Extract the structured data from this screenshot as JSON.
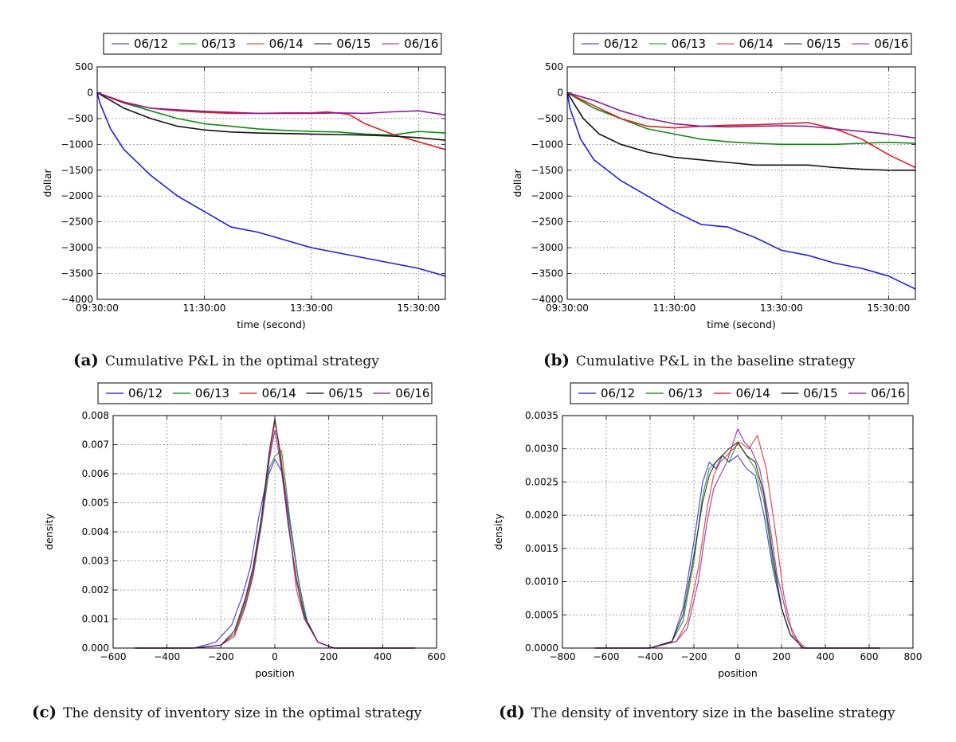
{
  "figure": {
    "captions": {
      "a": {
        "letter": "(a)",
        "text": "Cumulative P&L in the optimal strategy"
      },
      "b": {
        "letter": "(b)",
        "text": "Cumulative P&L in the baseline strategy"
      },
      "c": {
        "letter": "(c)",
        "text": "The density of inventory size in the optimal strategy"
      },
      "d": {
        "letter": "(d)",
        "text": "The density of inventory size in the baseline strategy"
      }
    },
    "colors": {
      "06/12": "#1f1fd6",
      "06/13": "#0f8a0f",
      "06/14": "#e01e1e",
      "06/15": "#111111",
      "06/16": "#8a1a9a"
    }
  },
  "chart_data": [
    {
      "id": "a",
      "type": "line",
      "title": "",
      "xlabel": "time (second)",
      "ylabel": "dollar",
      "x_unit": "hours since 09:30",
      "xlim": [
        0,
        6.5
      ],
      "ylim": [
        -4000,
        500
      ],
      "xticks": [
        0,
        2,
        4,
        6
      ],
      "xticklabels": [
        "09:30:00",
        "11:30:00",
        "13:30:00",
        "15:30:00"
      ],
      "yticks": [
        500,
        0,
        -500,
        -1000,
        -1500,
        -2000,
        -2500,
        -3000,
        -3500,
        -4000
      ],
      "grid": true,
      "legend": "top-center-outside",
      "series": [
        {
          "name": "06/12",
          "x": [
            0,
            0.05,
            0.25,
            0.5,
            1,
            1.5,
            2,
            2.5,
            3,
            3.5,
            4,
            4.5,
            5,
            5.5,
            6,
            6.5
          ],
          "values": [
            0,
            -200,
            -700,
            -1100,
            -1600,
            -2000,
            -2300,
            -2600,
            -2700,
            -2850,
            -3000,
            -3100,
            -3200,
            -3300,
            -3400,
            -3550
          ]
        },
        {
          "name": "06/13",
          "x": [
            0,
            0.5,
            1,
            1.5,
            2,
            2.5,
            3,
            3.5,
            4,
            4.5,
            5,
            5.5,
            6,
            6.5
          ],
          "values": [
            0,
            -200,
            -350,
            -500,
            -600,
            -650,
            -700,
            -730,
            -750,
            -760,
            -800,
            -820,
            -750,
            -780
          ]
        },
        {
          "name": "06/14",
          "x": [
            0,
            0.5,
            1,
            1.5,
            2,
            2.5,
            3,
            3.5,
            4,
            4.3,
            4.7,
            5,
            5.5,
            6,
            6.5
          ],
          "values": [
            0,
            -180,
            -300,
            -350,
            -380,
            -400,
            -400,
            -390,
            -390,
            -370,
            -420,
            -600,
            -800,
            -950,
            -1100
          ]
        },
        {
          "name": "06/15",
          "x": [
            0,
            0.5,
            1,
            1.5,
            2,
            2.5,
            3,
            3.5,
            4,
            4.5,
            5,
            5.5,
            6,
            6.5
          ],
          "values": [
            0,
            -300,
            -500,
            -650,
            -720,
            -760,
            -780,
            -790,
            -800,
            -810,
            -820,
            -840,
            -870,
            -920
          ]
        },
        {
          "name": "06/16",
          "x": [
            0,
            0.5,
            1,
            1.5,
            2,
            2.5,
            3,
            3.5,
            4,
            4.5,
            5,
            5.5,
            6,
            6.5
          ],
          "values": [
            0,
            -200,
            -300,
            -330,
            -360,
            -380,
            -400,
            -400,
            -400,
            -390,
            -400,
            -370,
            -350,
            -430
          ]
        }
      ]
    },
    {
      "id": "b",
      "type": "line",
      "title": "",
      "xlabel": "time (second)",
      "ylabel": "dollar",
      "x_unit": "hours since 09:30",
      "xlim": [
        0,
        6.5
      ],
      "ylim": [
        -4000,
        500
      ],
      "xticks": [
        0,
        2,
        4,
        6
      ],
      "xticklabels": [
        "09:30:00",
        "11:30:00",
        "13:30:00",
        "15:30:00"
      ],
      "yticks": [
        500,
        0,
        -500,
        -1000,
        -1500,
        -2000,
        -2500,
        -3000,
        -3500,
        -4000
      ],
      "grid": true,
      "legend": "top-center-outside",
      "series": [
        {
          "name": "06/12",
          "x": [
            0,
            0.05,
            0.25,
            0.5,
            1,
            1.5,
            2,
            2.5,
            3,
            3.5,
            4,
            4.5,
            5,
            5.5,
            6,
            6.5
          ],
          "values": [
            0,
            -300,
            -900,
            -1300,
            -1700,
            -2000,
            -2300,
            -2550,
            -2600,
            -2800,
            -3050,
            -3150,
            -3300,
            -3400,
            -3550,
            -3800
          ]
        },
        {
          "name": "06/13",
          "x": [
            0,
            0.5,
            1,
            1.5,
            2,
            2.5,
            3,
            3.5,
            4,
            4.5,
            5,
            5.5,
            6,
            6.5
          ],
          "values": [
            0,
            -300,
            -500,
            -700,
            -800,
            -900,
            -950,
            -980,
            -1000,
            -1000,
            -1000,
            -980,
            -960,
            -980
          ]
        },
        {
          "name": "06/14",
          "x": [
            0,
            0.5,
            1,
            1.5,
            2,
            2.5,
            3,
            3.5,
            4,
            4.5,
            5,
            5.5,
            6,
            6.5
          ],
          "values": [
            0,
            -250,
            -500,
            -650,
            -680,
            -650,
            -630,
            -620,
            -600,
            -580,
            -700,
            -900,
            -1200,
            -1450
          ]
        },
        {
          "name": "06/15",
          "x": [
            0,
            0.3,
            0.6,
            1,
            1.5,
            2,
            2.5,
            3,
            3.5,
            4,
            4.5,
            5,
            5.5,
            6,
            6.5
          ],
          "values": [
            0,
            -500,
            -800,
            -1000,
            -1150,
            -1250,
            -1300,
            -1350,
            -1400,
            -1400,
            -1400,
            -1450,
            -1480,
            -1500,
            -1500
          ]
        },
        {
          "name": "06/16",
          "x": [
            0,
            0.5,
            1,
            1.5,
            2,
            2.5,
            3,
            3.5,
            4,
            4.5,
            5,
            5.5,
            6,
            6.5
          ],
          "values": [
            0,
            -150,
            -350,
            -500,
            -600,
            -650,
            -660,
            -650,
            -640,
            -650,
            -700,
            -750,
            -800,
            -880
          ]
        }
      ]
    },
    {
      "id": "c",
      "type": "line",
      "title": "",
      "xlabel": "position",
      "ylabel": "density",
      "xlim": [
        -600,
        600
      ],
      "ylim": [
        0,
        0.008
      ],
      "xticks": [
        -600,
        -400,
        -200,
        0,
        200,
        400,
        600
      ],
      "xticklabels": [
        "−600",
        "−400",
        "−200",
        "0",
        "200",
        "400",
        "600"
      ],
      "yticks": [
        0,
        0.001,
        0.002,
        0.003,
        0.004,
        0.005,
        0.006,
        0.007,
        0.008
      ],
      "yticklabels": [
        "0.000",
        "0.001",
        "0.002",
        "0.003",
        "0.004",
        "0.005",
        "0.006",
        "0.007",
        "0.008"
      ],
      "grid": true,
      "legend": "top-center-outside",
      "series": [
        {
          "name": "06/12",
          "x": [
            -520,
            -300,
            -220,
            -160,
            -120,
            -90,
            -60,
            -30,
            0,
            30,
            60,
            90,
            120,
            160,
            220,
            300,
            520
          ],
          "values": [
            0,
            0,
            0.0002,
            0.0008,
            0.0018,
            0.0028,
            0.0045,
            0.0058,
            0.0065,
            0.006,
            0.004,
            0.0022,
            0.0009,
            0.0002,
            0,
            0,
            0
          ]
        },
        {
          "name": "06/13",
          "x": [
            -520,
            -300,
            -200,
            -150,
            -110,
            -80,
            -50,
            -20,
            0,
            25,
            55,
            85,
            115,
            160,
            220,
            300,
            520
          ],
          "values": [
            0,
            0,
            0.0001,
            0.0005,
            0.0015,
            0.0026,
            0.0042,
            0.0062,
            0.0066,
            0.0068,
            0.0045,
            0.0025,
            0.001,
            0.0002,
            0,
            0,
            0
          ]
        },
        {
          "name": "06/14",
          "x": [
            -520,
            -300,
            -200,
            -150,
            -110,
            -80,
            -50,
            -20,
            0,
            20,
            50,
            80,
            110,
            160,
            220,
            300,
            520
          ],
          "values": [
            0,
            0,
            0.0001,
            0.0005,
            0.0016,
            0.0027,
            0.0044,
            0.0066,
            0.0078,
            0.0068,
            0.0044,
            0.002,
            0.001,
            0.0002,
            0,
            0,
            0
          ]
        },
        {
          "name": "06/15",
          "x": [
            -520,
            -300,
            -200,
            -150,
            -110,
            -80,
            -50,
            -20,
            0,
            20,
            50,
            80,
            110,
            160,
            220,
            300,
            520
          ],
          "values": [
            0,
            0,
            0.0001,
            0.0006,
            0.0017,
            0.0028,
            0.0045,
            0.0068,
            0.0079,
            0.0066,
            0.0042,
            0.0024,
            0.0011,
            0.0002,
            0,
            0,
            0
          ]
        },
        {
          "name": "06/16",
          "x": [
            -520,
            -300,
            -200,
            -150,
            -110,
            -80,
            -50,
            -20,
            0,
            20,
            50,
            80,
            110,
            160,
            220,
            300,
            520
          ],
          "values": [
            0,
            0,
            0.0001,
            0.0004,
            0.0014,
            0.0025,
            0.0043,
            0.0065,
            0.0075,
            0.0064,
            0.0043,
            0.0023,
            0.001,
            0.0002,
            0,
            0,
            0
          ]
        }
      ]
    },
    {
      "id": "d",
      "type": "line",
      "title": "",
      "xlabel": "position",
      "ylabel": "density",
      "xlim": [
        -800,
        800
      ],
      "ylim": [
        0,
        0.0035
      ],
      "xticks": [
        -800,
        -600,
        -400,
        -200,
        0,
        200,
        400,
        600,
        800
      ],
      "xticklabels": [
        "−800",
        "−600",
        "−400",
        "−200",
        "0",
        "200",
        "400",
        "600",
        "800"
      ],
      "yticks": [
        0,
        0.0005,
        0.001,
        0.0015,
        0.002,
        0.0025,
        0.003,
        0.0035
      ],
      "yticklabels": [
        "0.0000",
        "0.0005",
        "0.0010",
        "0.0015",
        "0.0020",
        "0.0025",
        "0.0030",
        "0.0035"
      ],
      "grid": true,
      "legend": "top-center-outside",
      "series": [
        {
          "name": "06/12",
          "x": [
            -650,
            -400,
            -300,
            -250,
            -200,
            -160,
            -130,
            -100,
            -70,
            -40,
            0,
            40,
            80,
            120,
            160,
            200,
            240,
            300,
            650
          ],
          "values": [
            0,
            0,
            0.0001,
            0.0006,
            0.0016,
            0.0025,
            0.0028,
            0.0027,
            0.0029,
            0.0028,
            0.0029,
            0.0027,
            0.0026,
            0.002,
            0.0012,
            0.0006,
            0.0002,
            0,
            0
          ]
        },
        {
          "name": "06/13",
          "x": [
            -650,
            -400,
            -300,
            -250,
            -200,
            -160,
            -130,
            -100,
            -70,
            -40,
            0,
            40,
            80,
            120,
            160,
            200,
            240,
            300,
            650
          ],
          "values": [
            0,
            0,
            0.0001,
            0.0004,
            0.0013,
            0.0023,
            0.0027,
            0.0028,
            0.0029,
            0.0028,
            0.0031,
            0.0029,
            0.0027,
            0.0022,
            0.0013,
            0.0006,
            0.0002,
            0,
            0
          ]
        },
        {
          "name": "06/14",
          "x": [
            -650,
            -400,
            -280,
            -230,
            -180,
            -140,
            -110,
            -80,
            -50,
            -20,
            10,
            50,
            90,
            130,
            170,
            210,
            250,
            310,
            650
          ],
          "values": [
            0,
            0,
            0.0001,
            0.0004,
            0.0012,
            0.0021,
            0.0026,
            0.0028,
            0.0029,
            0.003,
            0.0031,
            0.003,
            0.0032,
            0.0027,
            0.0018,
            0.0008,
            0.0002,
            0,
            0
          ]
        },
        {
          "name": "06/15",
          "x": [
            -650,
            -400,
            -300,
            -250,
            -200,
            -160,
            -130,
            -100,
            -70,
            -40,
            0,
            40,
            80,
            120,
            160,
            200,
            240,
            300,
            650
          ],
          "values": [
            0,
            0,
            0.0001,
            0.0005,
            0.0014,
            0.0022,
            0.0026,
            0.0028,
            0.0029,
            0.003,
            0.0031,
            0.0029,
            0.0028,
            0.0023,
            0.0014,
            0.0006,
            0.0002,
            0,
            0
          ]
        },
        {
          "name": "06/16",
          "x": [
            -650,
            -400,
            -280,
            -230,
            -180,
            -140,
            -110,
            -80,
            -50,
            -20,
            0,
            30,
            60,
            100,
            140,
            180,
            230,
            290,
            650
          ],
          "values": [
            0,
            0,
            0.0001,
            0.0003,
            0.001,
            0.0019,
            0.0024,
            0.0026,
            0.0028,
            0.0031,
            0.0033,
            0.0031,
            0.003,
            0.0027,
            0.002,
            0.0011,
            0.0004,
            0,
            0
          ]
        }
      ]
    }
  ]
}
